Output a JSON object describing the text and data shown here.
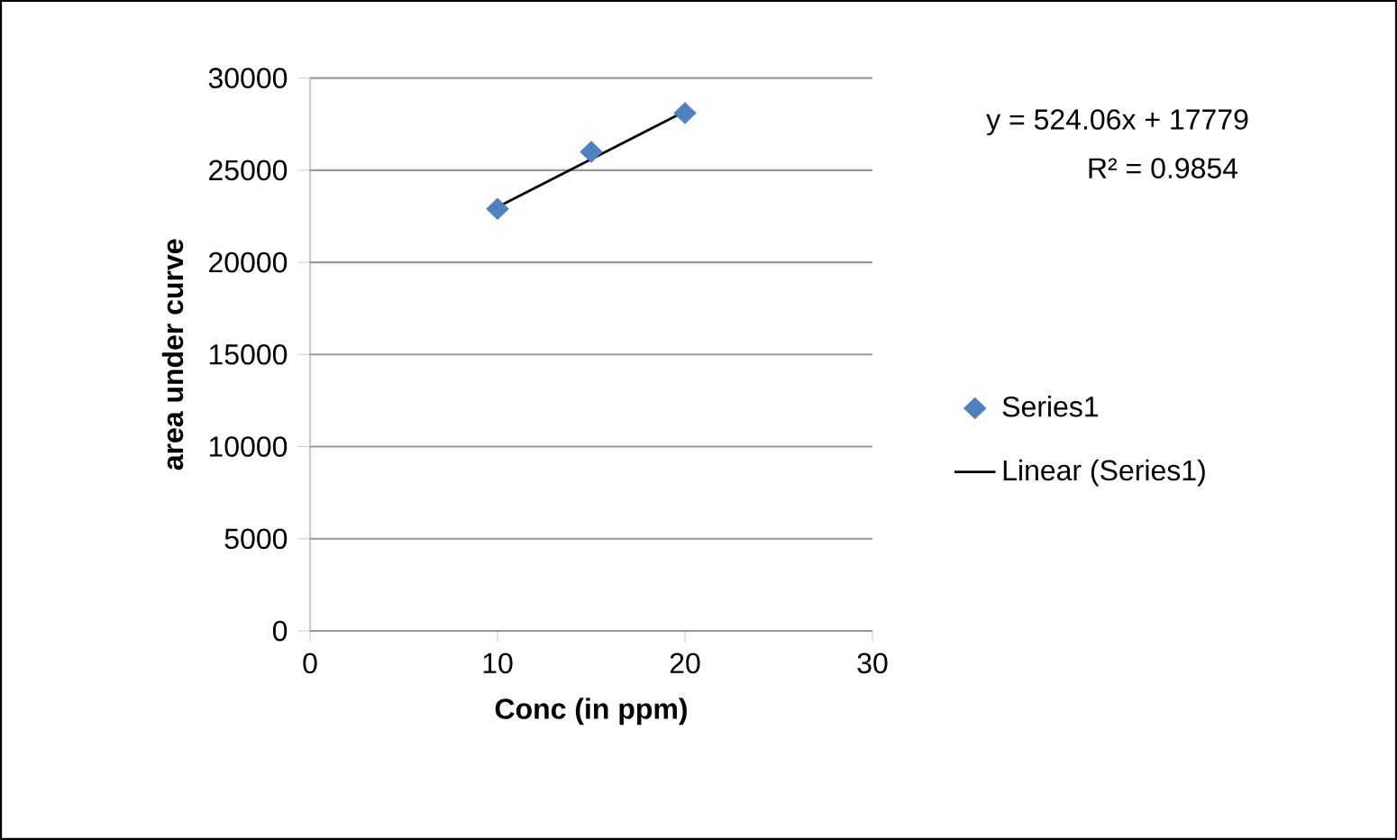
{
  "chart_data": {
    "type": "scatter",
    "xlabel": "Conc (in ppm)",
    "ylabel": "area under curve",
    "x": [
      10,
      15,
      20
    ],
    "series": [
      {
        "name": "Series1",
        "color": "#4f81bd",
        "marker": "diamond",
        "values": [
          22900,
          26000,
          28100
        ]
      },
      {
        "name": "Linear (Series1)",
        "type": "line",
        "color": "#000000",
        "x": [
          10,
          20
        ],
        "values": [
          23000,
          28200
        ]
      }
    ],
    "xlim": [
      0,
      30
    ],
    "xticks": [
      0,
      10,
      20,
      30
    ],
    "ylim": [
      0,
      30000
    ],
    "yticks": [
      0,
      5000,
      10000,
      15000,
      20000,
      25000,
      30000
    ],
    "grid": "y",
    "legend": "right",
    "annotations": [
      "y = 524.06x + 17779",
      "R² = 0.9854"
    ]
  }
}
